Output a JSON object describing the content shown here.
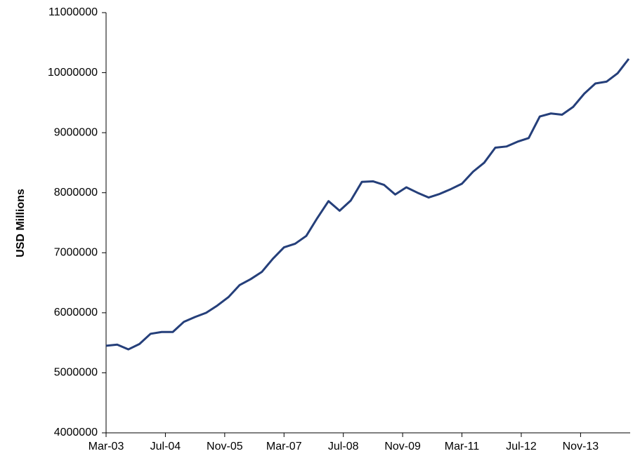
{
  "chart_data": {
    "type": "line",
    "y_label": "USD Millions",
    "x": [
      "Mar-03",
      "Jun-03",
      "Sep-03",
      "Dec-03",
      "Mar-04",
      "Jun-04",
      "Sep-04",
      "Dec-04",
      "Mar-05",
      "Jun-05",
      "Sep-05",
      "Dec-05",
      "Mar-06",
      "Jun-06",
      "Sep-06",
      "Dec-06",
      "Mar-07",
      "Jun-07",
      "Sep-07",
      "Dec-07",
      "Mar-08",
      "Jun-08",
      "Sep-08",
      "Dec-08",
      "Mar-09",
      "Jun-09",
      "Sep-09",
      "Dec-09",
      "Mar-10",
      "Jun-10",
      "Sep-10",
      "Dec-10",
      "Mar-11",
      "Jun-11",
      "Sep-11",
      "Dec-11",
      "Mar-12",
      "Jun-12",
      "Sep-12",
      "Dec-12",
      "Mar-13",
      "Jun-13",
      "Sep-13",
      "Dec-13",
      "Mar-14",
      "Jun-14",
      "Sep-14",
      "Dec-14"
    ],
    "values": [
      5450000,
      5470000,
      5390000,
      5480000,
      5650000,
      5680000,
      5680000,
      5850000,
      5930000,
      6000000,
      6120000,
      6260000,
      6460000,
      6560000,
      6680000,
      6900000,
      7090000,
      7150000,
      7280000,
      7580000,
      7860000,
      7700000,
      7870000,
      8180000,
      8190000,
      8130000,
      7970000,
      8090000,
      8000000,
      7920000,
      7980000,
      8060000,
      8150000,
      8350000,
      8500000,
      8750000,
      8770000,
      8850000,
      8910000,
      9270000,
      9320000,
      9300000,
      9430000,
      9650000,
      9820000,
      9850000,
      9990000,
      10230000
    ],
    "color": "#253f7a",
    "xlim": [
      "Mar-03",
      "Dec-14"
    ],
    "xticks": [
      "Mar-03",
      "Jul-04",
      "Nov-05",
      "Mar-07",
      "Jul-08",
      "Nov-09",
      "Mar-11",
      "Jul-12",
      "Nov-13"
    ],
    "ylim": [
      4000000,
      11000000
    ],
    "yticks": [
      4000000,
      5000000,
      6000000,
      7000000,
      8000000,
      9000000,
      10000000,
      11000000
    ],
    "grid": false
  }
}
